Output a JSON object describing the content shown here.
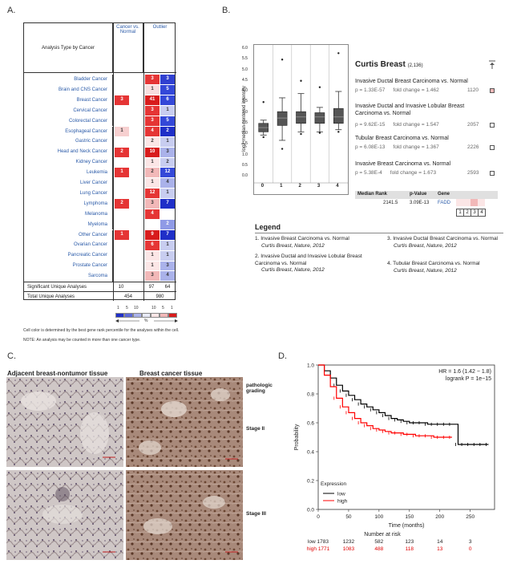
{
  "labels": {
    "a": "A.",
    "b": "B.",
    "c": "C.",
    "d": "D."
  },
  "panelA": {
    "header_left": "Analysis Type by Cancer",
    "header_col1": "Cancer vs. Normal",
    "header_col2": "Outlier",
    "rows": [
      {
        "name": "Bladder Cancer",
        "c1": "",
        "o1": "3",
        "o2": "3",
        "c1c": "",
        "o1c": "#e53535",
        "o2c": "#3040d0"
      },
      {
        "name": "Brain and CNS Cancer",
        "c1": "",
        "o1": "1",
        "o2": "5",
        "c1c": "",
        "o1c": "#f7dede",
        "o2c": "#3448d8"
      },
      {
        "name": "Breast Cancer",
        "c1": "3",
        "o1": "41",
        "o2": "6",
        "c1c": "#e53535",
        "o1c": "#d81c1c",
        "o2c": "#3448d8"
      },
      {
        "name": "Cervical Cancer",
        "c1": "",
        "o1": "3",
        "o2": "1",
        "c1c": "",
        "o1c": "#e53535",
        "o2c": "#c8cdf0"
      },
      {
        "name": "Colorectal Cancer",
        "c1": "",
        "o1": "3",
        "o2": "5",
        "c1c": "",
        "o1c": "#e53535",
        "o2c": "#3448d8"
      },
      {
        "name": "Esophageal Cancer",
        "c1": "1",
        "o1": "4",
        "o2": "2",
        "c1c": "#f7d0d0",
        "o1c": "#e53535",
        "o2c": "#1f2fc8"
      },
      {
        "name": "Gastric Cancer",
        "c1": "",
        "o1": "2",
        "o2": "1",
        "c1c": "",
        "o1c": "#fbe6e6",
        "o2c": "#c8cdf0"
      },
      {
        "name": "Head and Neck Cancer",
        "c1": "2",
        "o1": "10",
        "o2": "3",
        "c1c": "#e53535",
        "o1c": "#d81c1c",
        "o2c": "#aab2ea"
      },
      {
        "name": "Kidney Cancer",
        "c1": "",
        "o1": "1",
        "o2": "2",
        "c1c": "",
        "o1c": "#fbe6e6",
        "o2c": "#c8cdf0"
      },
      {
        "name": "Leukemia",
        "c1": "1",
        "o1": "2",
        "o2": "12",
        "c1c": "#e53535",
        "o1c": "#f2b8b8",
        "o2c": "#3448d8"
      },
      {
        "name": "Liver Cancer",
        "c1": "",
        "o1": "1",
        "o2": "4",
        "c1c": "",
        "o1c": "#fbe6e6",
        "o2c": "#aab2ea"
      },
      {
        "name": "Lung Cancer",
        "c1": "",
        "o1": "12",
        "o2": "1",
        "c1c": "",
        "o1c": "#e53535",
        "o2c": "#c8cdf0"
      },
      {
        "name": "Lymphoma",
        "c1": "2",
        "o1": "3",
        "o2": "7",
        "c1c": "#e53535",
        "o1c": "#f2b8b8",
        "o2c": "#1f2fc8"
      },
      {
        "name": "Melanoma",
        "c1": "",
        "o1": "4",
        "o2": "",
        "c1c": "",
        "o1c": "#e53535",
        "o2c": ""
      },
      {
        "name": "Myeloma",
        "c1": "",
        "o1": "",
        "o2": "2",
        "c1c": "",
        "o1c": "",
        "o2c": "#8f9ae6"
      },
      {
        "name": "Other Cancer",
        "c1": "1",
        "o1": "9",
        "o2": "7",
        "c1c": "#e53535",
        "o1c": "#d81c1c",
        "o2c": "#1f2fc8"
      },
      {
        "name": "Ovarian Cancer",
        "c1": "",
        "o1": "6",
        "o2": "1",
        "c1c": "",
        "o1c": "#e53535",
        "o2c": "#c8cdf0"
      },
      {
        "name": "Pancreatic Cancer",
        "c1": "",
        "o1": "1",
        "o2": "1",
        "c1c": "",
        "o1c": "#fbe6e6",
        "o2c": "#c8cdf0"
      },
      {
        "name": "Prostate Cancer",
        "c1": "",
        "o1": "1",
        "o2": "3",
        "c1c": "",
        "o1c": "#fbe6e6",
        "o2c": "#aab2ea"
      },
      {
        "name": "Sarcoma",
        "c1": "",
        "o1": "3",
        "o2": "4",
        "c1c": "",
        "o1c": "#f2b8b8",
        "o2c": "#aab2ea"
      }
    ],
    "foot1": {
      "name": "Significant Unique Analyses",
      "c1": "10",
      "o1": "97",
      "o2": "64"
    },
    "foot2": {
      "name": "Total Unique Analyses",
      "c1": "454",
      "o2": "980"
    },
    "scale": {
      "blue_labels": [
        "1",
        "5",
        "10"
      ],
      "red_labels": [
        "10",
        "5",
        "1"
      ],
      "pct": "%"
    },
    "note1": "Cell color is determined by the best gene rank percentile for the analyses within the cell.",
    "note2": "NOTE: An analysis may be counted in more than one cancer type."
  },
  "panelB": {
    "ylabel": "log2 median-centered intensity",
    "yticks": [
      "6.0",
      "5.5",
      "5.0",
      "4.5",
      "4.0",
      "3.5",
      "3.0",
      "2.5",
      "2.0",
      "1.5",
      "1.0",
      "0.5",
      "0.0"
    ],
    "xticks": [
      "0",
      "1",
      "2",
      "3",
      "4"
    ],
    "title": "Curtis Breast",
    "count": "(2,136)",
    "comparisons": [
      {
        "name": "Invasive Ductal Breast Carcinoma vs. Normal",
        "p": "p = 1.33E-57",
        "fc": "fold change = 1.462",
        "rank": "1120"
      },
      {
        "name": "Invasive Ductal and Invasive Lobular Breast Carcinoma vs. Normal",
        "p": "p = 9.62E-15",
        "fc": "fold change = 1.547",
        "rank": "2057"
      },
      {
        "name": "Tubular Breast Carcinoma vs. Normal",
        "p": "p = 6.08E-13",
        "fc": "fold change = 1.367",
        "rank": "2226"
      },
      {
        "name": "Invasive Breast Carcinoma vs. Normal",
        "p": "p = 5.38E-4",
        "fc": "fold change = 1.673",
        "rank": "2593"
      }
    ],
    "table": {
      "h1": "Median Rank",
      "h2": "p-Value",
      "h3": "Gene",
      "rank": "2141.5",
      "pval": "3.09E-13",
      "gene": "FADD",
      "idx": [
        "1",
        "2",
        "3",
        "4"
      ]
    },
    "legend_title": "Legend",
    "legend": [
      {
        "n": "1.",
        "t": "Invasive Breast Carcinoma vs. Normal",
        "src": "Curtis Breast, Nature, 2012"
      },
      {
        "n": "2.",
        "t": "Invasive Ductal and Invasive Lobular Breast Carcinoma vs. Normal",
        "src": "Curtis Breast, Nature, 2012"
      },
      {
        "n": "3.",
        "t": "Invasive Ductal Breast Carcinoma vs. Normal",
        "src": "Curtis Breast, Nature, 2012"
      },
      {
        "n": "4.",
        "t": "Tubular Breast Carcinoma vs. Normal",
        "src": "Curtis Breast, Nature, 2012"
      }
    ]
  },
  "panelC": {
    "left_title": "Adjacent breast-nontumor tissue",
    "right_title": "Breast cancer tissue",
    "side1": "pathologic",
    "side1b": "grading",
    "side2": "Stage II",
    "side3": "Stage III"
  },
  "chart_data": {
    "type": "line",
    "title": "",
    "xlabel": "Time (months)",
    "ylabel": "Probability",
    "xlim": [
      0,
      290
    ],
    "ylim": [
      0,
      1.0
    ],
    "xticks": [
      "0",
      "50",
      "100",
      "150",
      "200",
      "250"
    ],
    "yticks": [
      "0.0",
      "0.2",
      "0.4",
      "0.6",
      "0.8",
      "1.0"
    ],
    "annotation1": "HR = 1.6 (1.42 − 1.8)",
    "annotation2": "logrank P = 1e−15",
    "legend_title": "Expression",
    "series": [
      {
        "name": "low",
        "color": "#000000",
        "x": [
          0,
          10,
          20,
          30,
          40,
          50,
          60,
          70,
          80,
          90,
          100,
          110,
          120,
          130,
          140,
          150,
          160,
          170,
          180,
          190,
          200,
          210,
          220,
          230,
          240,
          250,
          260,
          270,
          280
        ],
        "y": [
          1.0,
          0.96,
          0.91,
          0.86,
          0.82,
          0.79,
          0.76,
          0.73,
          0.71,
          0.69,
          0.67,
          0.65,
          0.63,
          0.62,
          0.61,
          0.6,
          0.6,
          0.6,
          0.59,
          0.59,
          0.59,
          0.59,
          0.59,
          0.45,
          0.45,
          0.45,
          0.45,
          0.45,
          0.45
        ]
      },
      {
        "name": "high",
        "color": "#ff0000",
        "x": [
          0,
          10,
          20,
          30,
          40,
          50,
          60,
          70,
          80,
          90,
          100,
          110,
          120,
          130,
          140,
          150,
          160,
          170,
          180,
          190,
          200,
          210,
          220
        ],
        "y": [
          1.0,
          0.93,
          0.85,
          0.77,
          0.71,
          0.67,
          0.63,
          0.6,
          0.58,
          0.56,
          0.55,
          0.54,
          0.53,
          0.53,
          0.52,
          0.52,
          0.51,
          0.51,
          0.51,
          0.5,
          0.5,
          0.5,
          0.5
        ]
      }
    ],
    "risk_title": "Number at risk",
    "risk_low": [
      "low 1783",
      "1232",
      "582",
      "123",
      "14",
      "3"
    ],
    "risk_high": [
      "high 1771",
      "1083",
      "488",
      "118",
      "13",
      "0"
    ]
  }
}
